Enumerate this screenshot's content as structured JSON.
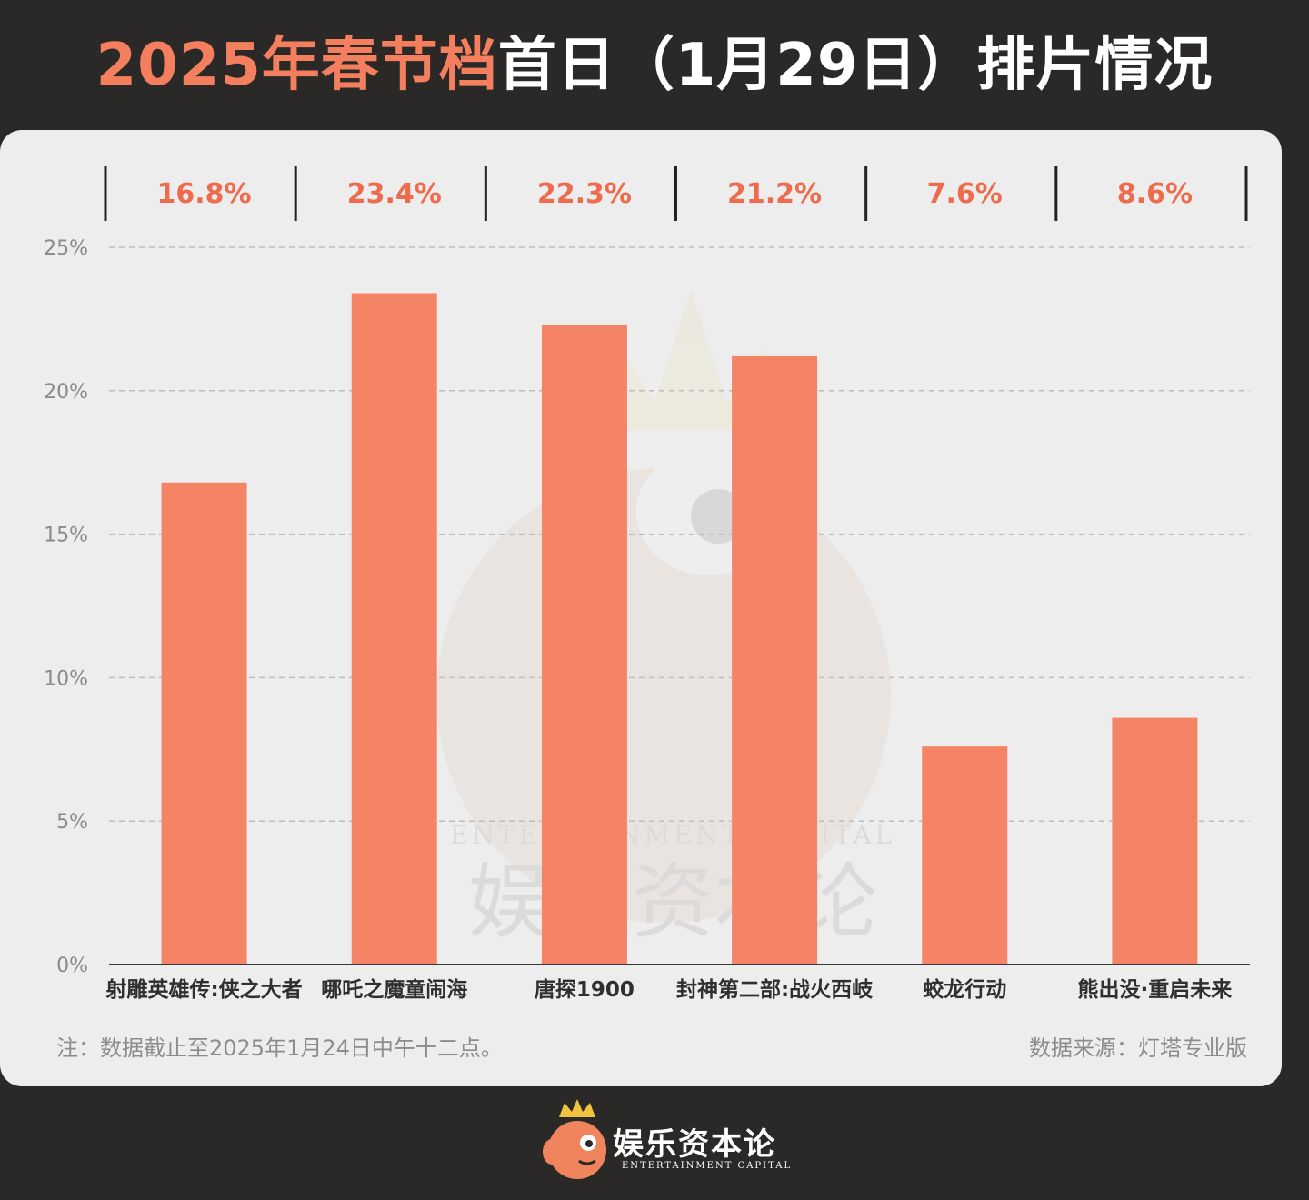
{
  "header": {
    "title_highlight": "2025年春节档",
    "title_rest": "首日（1月29日）排片情况"
  },
  "chart_data": {
    "type": "bar",
    "categories": [
      "射雕英雄传:侠之大者",
      "哪吒之魔童闹海",
      "唐探1900",
      "封神第二部:战火西岐",
      "蛟龙行动",
      "熊出没·重启未来"
    ],
    "values": [
      16.8,
      23.4,
      22.3,
      21.2,
      7.6,
      8.6
    ],
    "value_labels": [
      "16.8%",
      "23.4%",
      "22.3%",
      "21.2%",
      "7.6%",
      "8.6%"
    ],
    "ylim": [
      0,
      25
    ],
    "yticks": [
      0,
      5,
      10,
      15,
      20,
      25
    ],
    "ytick_labels": [
      "0%",
      "5%",
      "10%",
      "15%",
      "20%",
      "25%"
    ],
    "grid": true,
    "bar_color": "#f58466",
    "label_color": "#ee6b4d"
  },
  "note": "注：数据截止至2025年1月24日中午十二点。",
  "source": "数据来源：灯塔专业版",
  "watermark": {
    "en": "ENTERTAINMENT CAPITAL",
    "cn": "娱乐资本论"
  },
  "footer": {
    "brand_cn": "娱乐资本论",
    "brand_en": "ENTERTAINMENT CAPITAL"
  }
}
